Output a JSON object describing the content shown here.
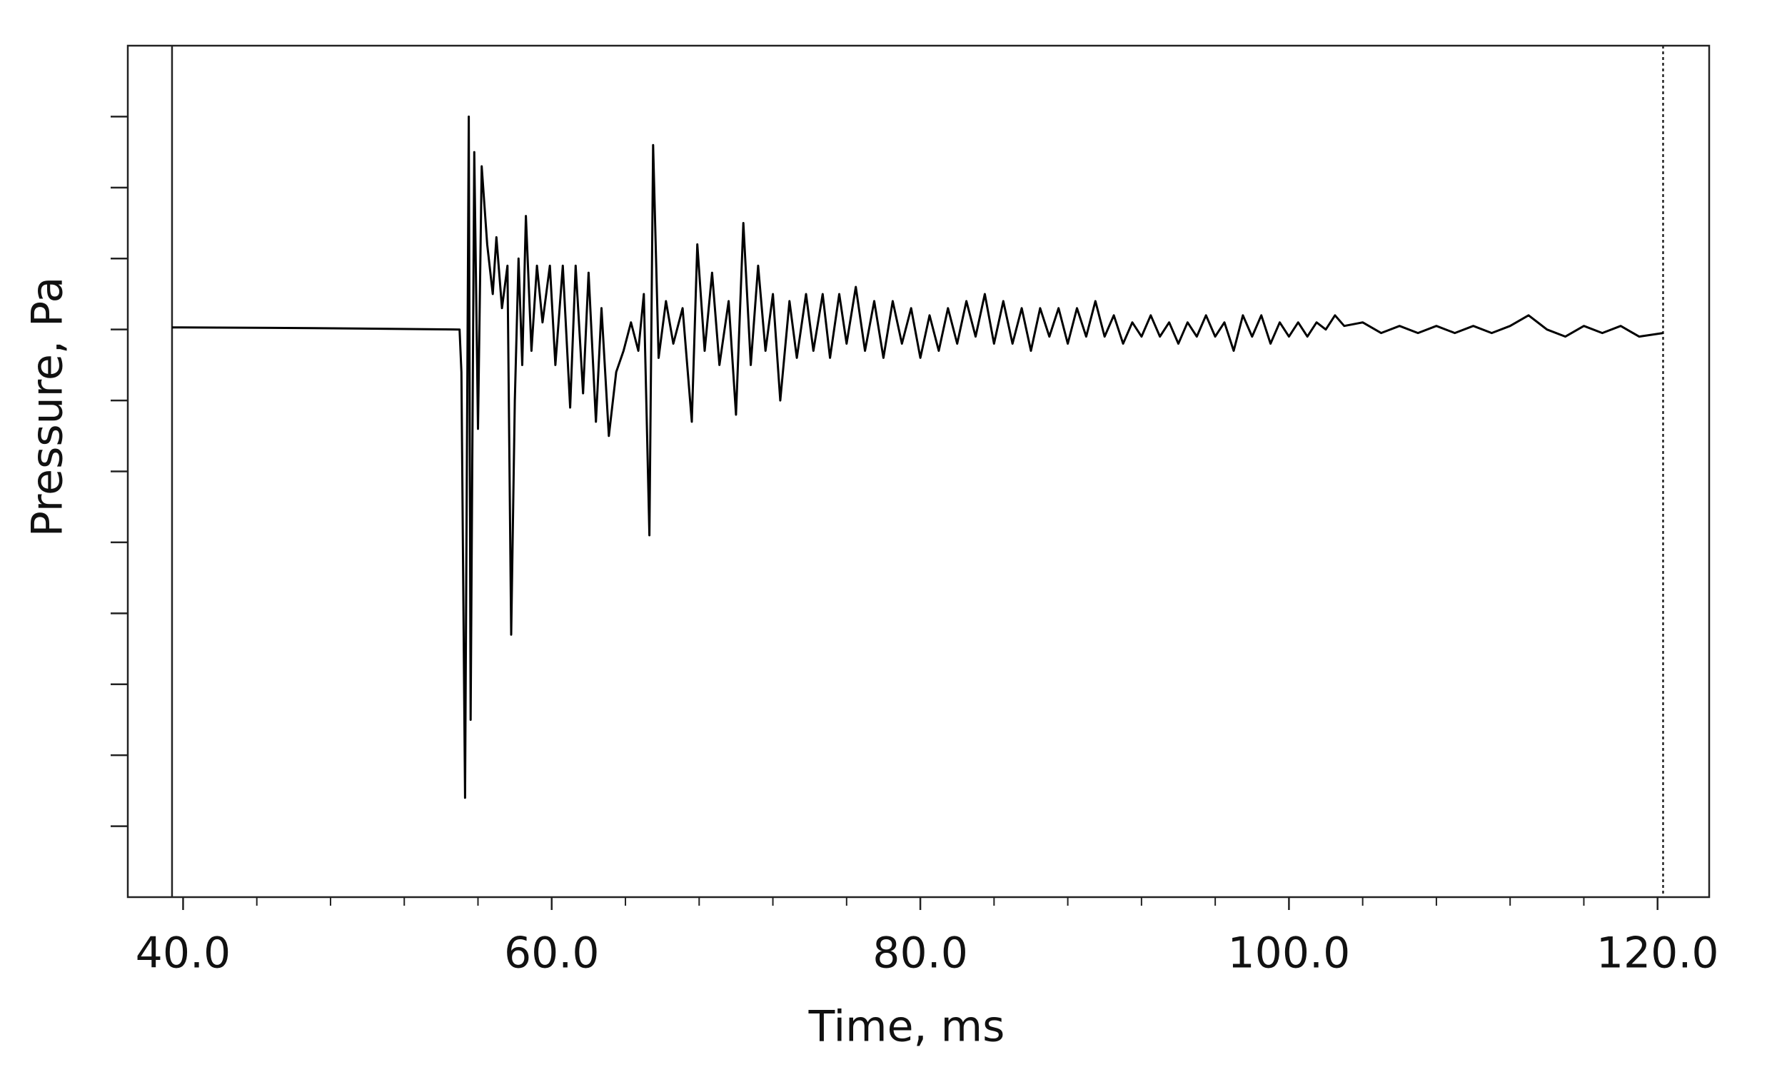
{
  "chart_data": {
    "type": "line",
    "xlabel": "Time, ms",
    "ylabel": "Pressure, Pa",
    "color": "#000000",
    "xlim": [
      37,
      122.8
    ],
    "xticks": [
      {
        "value": 40,
        "label": "40.0"
      },
      {
        "value": 60,
        "label": "60.0"
      },
      {
        "value": 80,
        "label": "80.0"
      },
      {
        "value": 100,
        "label": "100.0"
      },
      {
        "value": 120,
        "label": "120.0"
      }
    ],
    "xminor_ticks": [
      44,
      48,
      52,
      56,
      64,
      68,
      72,
      76,
      84,
      88,
      92,
      96,
      104,
      108,
      112,
      116
    ],
    "ylim": [
      -8,
      4
    ],
    "yticks": [
      -7,
      -6,
      -5,
      -4,
      -3,
      -2,
      -1,
      0,
      1,
      2,
      3
    ],
    "vlines": [
      {
        "x": 39.4,
        "style": "solid"
      },
      {
        "x": 120.3,
        "style": "dotted"
      }
    ],
    "x": [
      39.4,
      47,
      55.0,
      55.1,
      55.3,
      55.5,
      55.6,
      55.8,
      56.0,
      56.2,
      56.5,
      56.8,
      57.0,
      57.3,
      57.6,
      57.8,
      58.0,
      58.2,
      58.4,
      58.6,
      58.9,
      59.2,
      59.5,
      59.9,
      60.2,
      60.6,
      61.0,
      61.3,
      61.7,
      62.0,
      62.4,
      62.7,
      63.1,
      63.5,
      63.9,
      64.3,
      64.7,
      65.0,
      65.3,
      65.5,
      65.8,
      66.2,
      66.6,
      67.1,
      67.6,
      67.9,
      68.3,
      68.7,
      69.1,
      69.6,
      70.0,
      70.4,
      70.8,
      71.2,
      71.6,
      72.0,
      72.4,
      72.9,
      73.3,
      73.8,
      74.2,
      74.7,
      75.1,
      75.6,
      76.0,
      76.5,
      77.0,
      77.5,
      78.0,
      78.5,
      79.0,
      79.5,
      80.0,
      80.5,
      81.0,
      81.5,
      82.0,
      82.5,
      83.0,
      83.5,
      84.0,
      84.5,
      85.0,
      85.5,
      86.0,
      86.5,
      87.0,
      87.5,
      88.0,
      88.5,
      89.0,
      89.5,
      90.0,
      90.5,
      91.0,
      91.5,
      92.0,
      92.5,
      93.0,
      93.5,
      94.0,
      94.5,
      95.0,
      95.5,
      96.0,
      96.5,
      97.0,
      97.5,
      98.0,
      98.5,
      99.0,
      99.5,
      100.0,
      100.5,
      101.0,
      101.5,
      102.0,
      102.5,
      103.0,
      104,
      105,
      106,
      107,
      108,
      109,
      110,
      111,
      112,
      113,
      114,
      115,
      116,
      117,
      118,
      119,
      120.3
    ],
    "values": [
      0.03,
      0.02,
      0,
      -0.6,
      -6.6,
      3.0,
      -5.5,
      2.5,
      -1.4,
      2.3,
      1.2,
      0.5,
      1.3,
      0.3,
      0.9,
      -4.3,
      -1.0,
      1.0,
      -0.5,
      1.6,
      -0.3,
      0.9,
      0.1,
      0.9,
      -0.5,
      0.9,
      -1.1,
      0.9,
      -0.9,
      0.8,
      -1.3,
      0.3,
      -1.5,
      -0.6,
      -0.3,
      0.1,
      -0.3,
      0.5,
      -2.9,
      2.6,
      -0.4,
      0.4,
      -0.2,
      0.3,
      -1.3,
      1.2,
      -0.3,
      0.8,
      -0.5,
      0.4,
      -1.2,
      1.5,
      -0.5,
      0.9,
      -0.3,
      0.5,
      -1.0,
      0.4,
      -0.4,
      0.5,
      -0.3,
      0.5,
      -0.4,
      0.5,
      -0.2,
      0.6,
      -0.3,
      0.4,
      -0.4,
      0.4,
      -0.2,
      0.3,
      -0.4,
      0.2,
      -0.3,
      0.3,
      -0.2,
      0.4,
      -0.1,
      0.5,
      -0.2,
      0.4,
      -0.2,
      0.3,
      -0.3,
      0.3,
      -0.1,
      0.3,
      -0.2,
      0.3,
      -0.1,
      0.4,
      -0.1,
      0.2,
      -0.2,
      0.1,
      -0.1,
      0.2,
      -0.1,
      0.1,
      -0.2,
      0.1,
      -0.1,
      0.2,
      -0.1,
      0.1,
      -0.3,
      0.2,
      -0.1,
      0.2,
      -0.2,
      0.1,
      -0.1,
      0.1,
      -0.1,
      0.1,
      0,
      0.2,
      0.05,
      0.1,
      -0.05,
      0.05,
      -0.05,
      0.05,
      -0.05,
      0.05,
      -0.05,
      0.05,
      0.2,
      0,
      -0.1,
      0.05,
      -0.05,
      0.05,
      -0.1,
      -0.05
    ]
  }
}
